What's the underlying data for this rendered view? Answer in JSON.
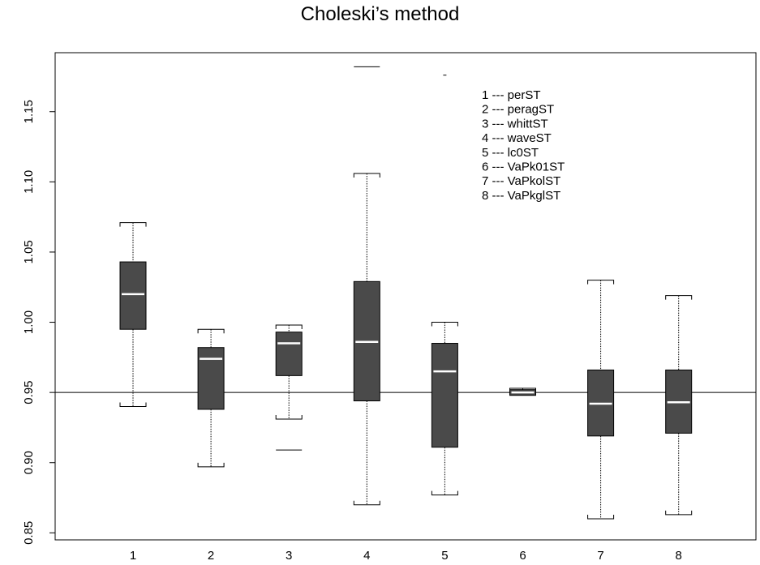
{
  "chart_data": {
    "type": "box",
    "title": "Choleski’s method",
    "xlabel": "",
    "ylabel": "",
    "ylim": [
      0.845,
      1.192
    ],
    "y_ticks": [
      "0.85",
      "0.90",
      "0.95",
      "1.00",
      "1.05",
      "1.10",
      "1.15"
    ],
    "categories": [
      "1",
      "2",
      "3",
      "4",
      "5",
      "6",
      "7",
      "8"
    ],
    "reference_line": 0.95,
    "boxes": [
      {
        "category": "1",
        "whisker_low": 0.94,
        "q1": 0.995,
        "median": 1.02,
        "q3": 1.043,
        "whisker_high": 1.071,
        "outliers": []
      },
      {
        "category": "2",
        "whisker_low": 0.897,
        "q1": 0.938,
        "median": 0.974,
        "q3": 0.982,
        "whisker_high": 0.995,
        "outliers": []
      },
      {
        "category": "3",
        "whisker_low": 0.931,
        "q1": 0.962,
        "median": 0.985,
        "q3": 0.993,
        "whisker_high": 0.998,
        "outliers": [
          0.909
        ]
      },
      {
        "category": "4",
        "whisker_low": 0.87,
        "q1": 0.944,
        "median": 0.986,
        "q3": 1.029,
        "whisker_high": 1.106,
        "outliers": [
          1.182
        ]
      },
      {
        "category": "5",
        "whisker_low": 0.877,
        "q1": 0.911,
        "median": 0.965,
        "q3": 0.985,
        "whisker_high": 1.0,
        "outliers": [
          1.176
        ]
      },
      {
        "category": "6",
        "whisker_low": 0.948,
        "q1": 0.948,
        "median": 0.95,
        "q3": 0.952,
        "whisker_high": 0.953,
        "outliers": []
      },
      {
        "category": "7",
        "whisker_low": 0.86,
        "q1": 0.919,
        "median": 0.942,
        "q3": 0.966,
        "whisker_high": 1.03,
        "outliers": []
      },
      {
        "category": "8",
        "whisker_low": 0.863,
        "q1": 0.921,
        "median": 0.943,
        "q3": 0.966,
        "whisker_high": 1.019,
        "outliers": []
      }
    ],
    "legend": [
      "1 --- perST",
      "2 --- peragST",
      "3 --- whittST",
      "4 --- waveST",
      "5 --- lc0ST",
      "6 --- VaPk01ST",
      "7 --- VaPkolST",
      "8 --- VaPkglST"
    ],
    "legend_position": "top-right",
    "grid": false,
    "colors": {
      "box_fill": "#4a4a4a",
      "median": "#ffffff",
      "line": "#000000"
    }
  }
}
